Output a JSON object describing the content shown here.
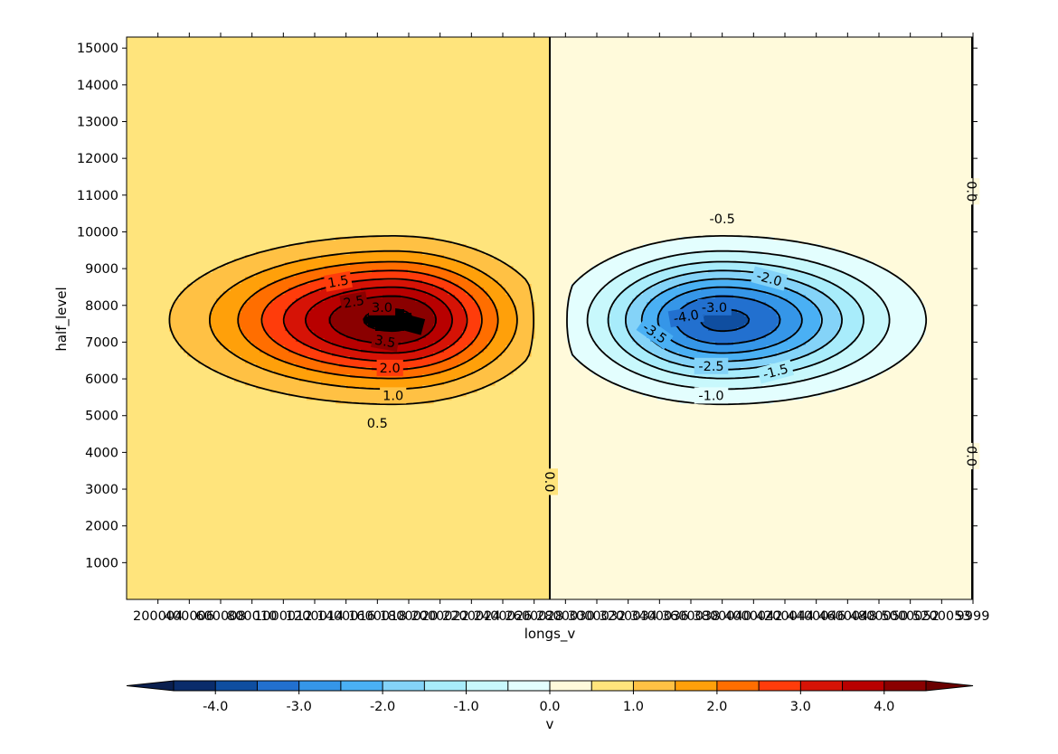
{
  "chart_data": {
    "type": "contour",
    "variable": "v",
    "xlabel": "longs_v",
    "ylabel": "half_level",
    "xlim": [
      0,
      540000
    ],
    "ylim": [
      0,
      15300
    ],
    "x_ticks": [
      20000,
      40000,
      60000,
      80000,
      100000,
      120000,
      140000,
      160000,
      180000,
      200000,
      220000,
      240000,
      260000,
      280000,
      300000,
      320000,
      340000,
      360000,
      380000,
      400000,
      420000,
      440000,
      460000,
      480000,
      500000,
      520000,
      539999
    ],
    "x_tick_labels": [
      "200004",
      "400006",
      "600008",
      "800010",
      "1000012",
      "1200014",
      "1400016",
      "1600018",
      "1800020",
      "2000022",
      "2200024",
      "2400026",
      "2600028",
      "2800030",
      "3000032",
      "3200034",
      "3400036",
      "3600038",
      "3800040",
      "4000042",
      "4200044",
      "4400046",
      "4600048",
      "4800050",
      "5000052",
      "5200053",
      "9999"
    ],
    "y_ticks": [
      1000,
      2000,
      3000,
      4000,
      5000,
      6000,
      7000,
      8000,
      9000,
      10000,
      11000,
      12000,
      13000,
      14000,
      15000
    ],
    "y_tick_labels": [
      "1000",
      "2000",
      "3000",
      "4000",
      "5000",
      "6000",
      "7000",
      "8000",
      "9000",
      "10000",
      "11000",
      "12000",
      "13000",
      "14000",
      "15000"
    ],
    "levels": [
      -4.5,
      -4.0,
      -3.5,
      -3.0,
      -2.5,
      -2.0,
      -1.5,
      -1.0,
      -0.5,
      0.0,
      0.5,
      1.0,
      1.5,
      2.0,
      2.5,
      3.0,
      3.5,
      4.0,
      4.5
    ],
    "field": {
      "positive_center": [
        170000,
        7600
      ],
      "negative_center": [
        380000,
        7600
      ],
      "peak_amplitude": 4.15,
      "zero_line_x": 270000
    },
    "contour_labels": [
      {
        "text": "0.5",
        "x": 160000,
        "y": 4800,
        "rot": 0
      },
      {
        "text": "1.0",
        "x": 170000,
        "y": 5550,
        "rot": 0
      },
      {
        "text": "1.5",
        "x": 135000,
        "y": 8650,
        "rot": -10
      },
      {
        "text": "2.0",
        "x": 168000,
        "y": 6300,
        "rot": 0
      },
      {
        "text": "2.5",
        "x": 145000,
        "y": 8100,
        "rot": -10
      },
      {
        "text": "3.0",
        "x": 163000,
        "y": 7950,
        "rot": 0
      },
      {
        "text": "3.5",
        "x": 165000,
        "y": 7020,
        "rot": 10
      },
      {
        "text": "4.0",
        "x": 181000,
        "y": 7500,
        "rot": 15
      },
      {
        "text": "0.0",
        "x": 270000,
        "y": 3200,
        "rot": 90
      },
      {
        "text": "-0.5",
        "x": 380000,
        "y": 10350,
        "rot": 0
      },
      {
        "text": "-1.0",
        "x": 373000,
        "y": 5550,
        "rot": 0
      },
      {
        "text": "-1.5",
        "x": 414000,
        "y": 6200,
        "rot": -15
      },
      {
        "text": "-2.0",
        "x": 410000,
        "y": 8730,
        "rot": 15
      },
      {
        "text": "-2.5",
        "x": 373000,
        "y": 6350,
        "rot": 0
      },
      {
        "text": "-3.0",
        "x": 375000,
        "y": 7950,
        "rot": 0
      },
      {
        "text": "-3.5",
        "x": 337000,
        "y": 7250,
        "rot": 35
      },
      {
        "text": "-4.0",
        "x": 357000,
        "y": 7700,
        "rot": -10
      },
      {
        "text": "0.0",
        "x": 539000,
        "y": 11100,
        "rot": 90
      },
      {
        "text": "0.0",
        "x": 539000,
        "y": 3900,
        "rot": 90
      }
    ],
    "colorbar": {
      "label": "v",
      "orientation": "horizontal",
      "extend": "both",
      "range": [
        -4.5,
        4.5
      ],
      "ticks": [
        -4.0,
        -3.0,
        -2.0,
        -1.0,
        0.0,
        1.0,
        2.0,
        3.0,
        4.0
      ],
      "tick_labels": [
        "-4.0",
        "-3.0",
        "-2.0",
        "-1.0",
        "0.0",
        "1.0",
        "2.0",
        "3.0",
        "4.0"
      ],
      "colors": [
        "#0a2c6b",
        "#0f4ea0",
        "#2270cf",
        "#3596e8",
        "#4ab0f4",
        "#84d3f8",
        "#a8ecfb",
        "#c8f8fc",
        "#e3fefe",
        "#fffadb",
        "#ffe47c",
        "#ffc144",
        "#ffa00a",
        "#ff6e00",
        "#ff3c0b",
        "#d61306",
        "#b80000",
        "#8a0000"
      ]
    }
  }
}
